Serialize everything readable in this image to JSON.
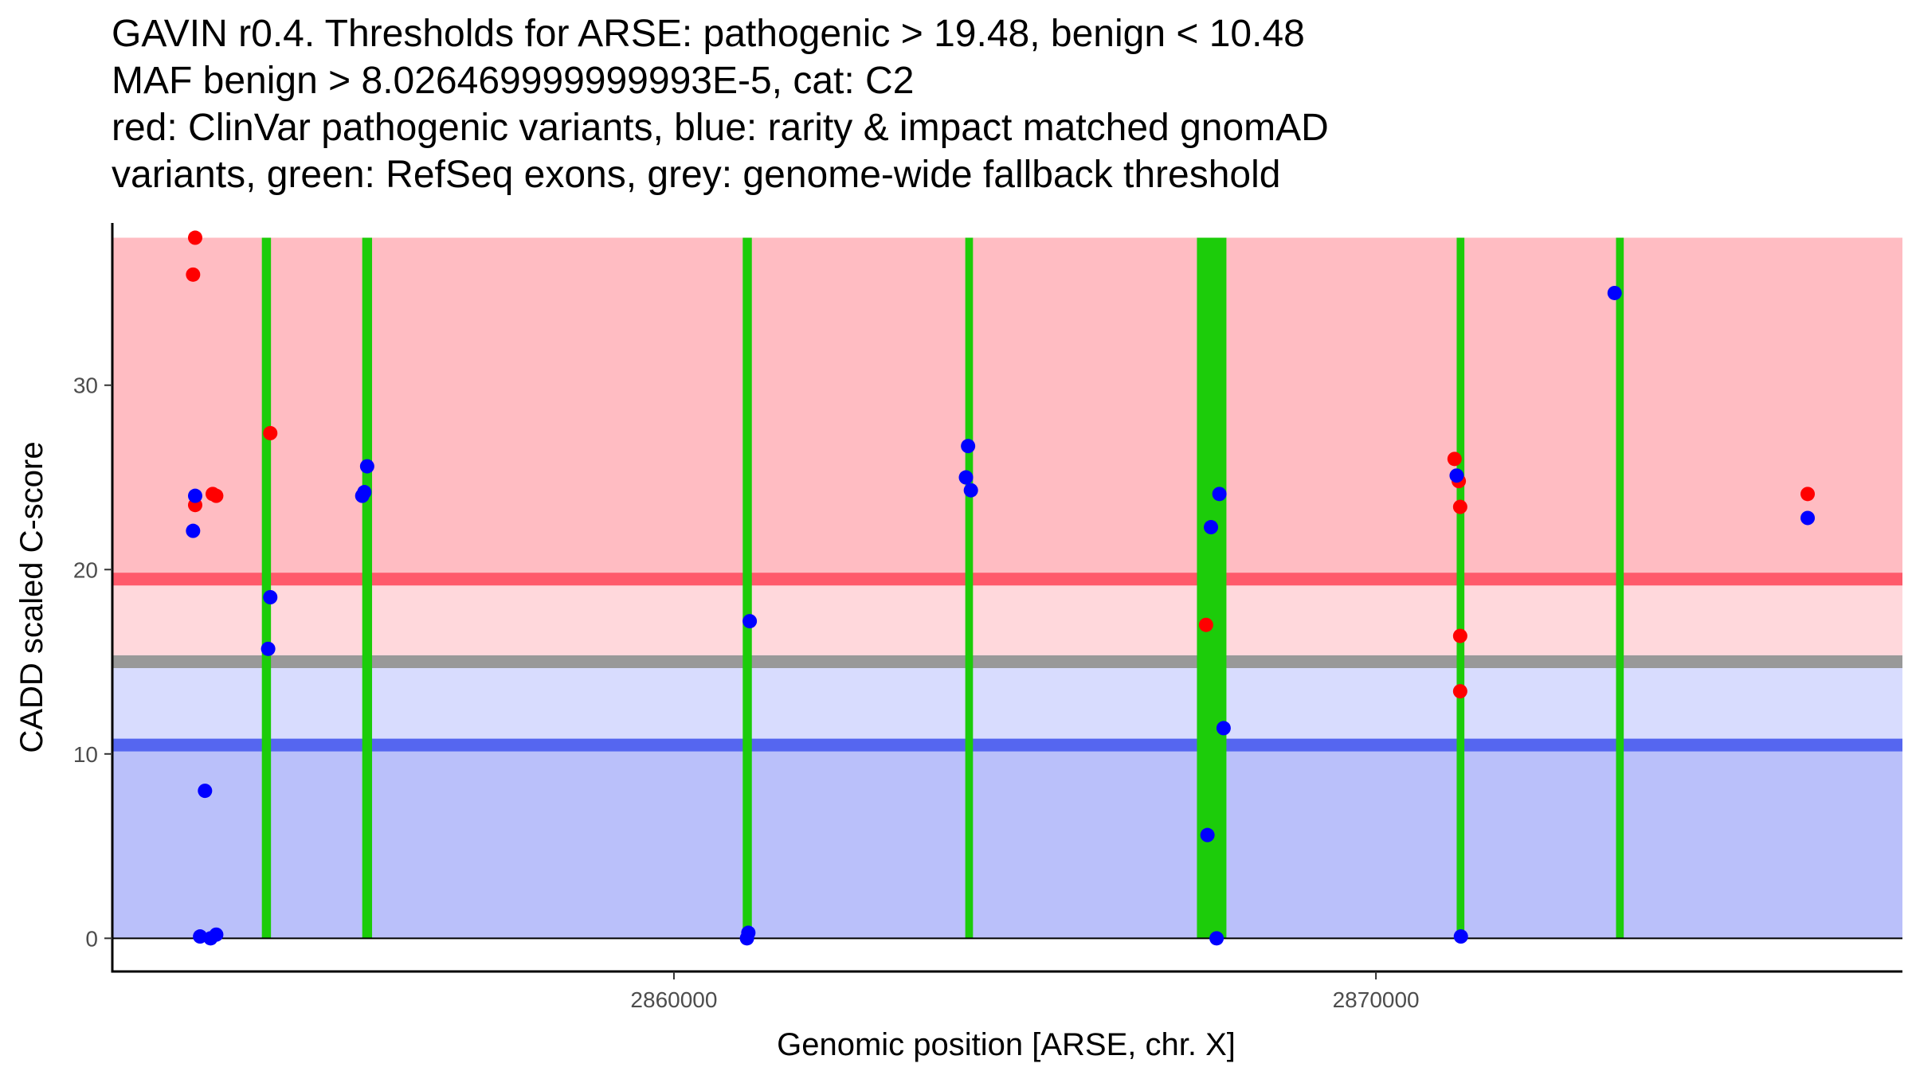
{
  "chart_data": {
    "type": "scatter",
    "title_lines": [
      "GAVIN r0.4. Thresholds for ARSE: pathogenic > 19.48, benign < 10.48",
      "MAF benign > 8.026469999999993E-5, cat: C2",
      "red: ClinVar pathogenic variants, blue: rarity & impact matched gnomAD",
      "variants, green: RefSeq exons, grey: genome-wide fallback threshold"
    ],
    "xlabel": "Genomic position [ARSE, chr. X]",
    "ylabel": "CADD scaled C-score",
    "xlim": [
      2852000,
      2877500
    ],
    "ylim": [
      -1.8,
      38.8
    ],
    "x_ticks": [
      {
        "value": 2860000,
        "label": "2860000"
      },
      {
        "value": 2870000,
        "label": "2870000"
      }
    ],
    "y_ticks": [
      {
        "value": 0,
        "label": "0"
      },
      {
        "value": 10,
        "label": "10"
      },
      {
        "value": 20,
        "label": "20"
      },
      {
        "value": 30,
        "label": "30"
      }
    ],
    "thresholds": {
      "pathogenic": 19.48,
      "benign": 10.48,
      "genome_wide_fallback": 15.0,
      "max_score": 38
    },
    "regions": [
      {
        "name": "pathogenic-zone",
        "y0": 19.48,
        "y1": 38,
        "color": "#ffbcc2"
      },
      {
        "name": "grey-upper-zone",
        "y0": 15.0,
        "y1": 19.48,
        "color": "#ffd8dc"
      },
      {
        "name": "grey-lower-zone",
        "y0": 10.48,
        "y1": 15.0,
        "color": "#d8dcfe"
      },
      {
        "name": "benign-zone",
        "y0": 0,
        "y1": 10.48,
        "color": "#bac0fa"
      }
    ],
    "threshold_lines": [
      {
        "name": "pathogenic-threshold-line",
        "y": 19.48,
        "color": "#ff5a6b"
      },
      {
        "name": "fallback-threshold-line",
        "y": 15.0,
        "color": "#999999"
      },
      {
        "name": "benign-threshold-line",
        "y": 10.48,
        "color": "#5566f0"
      }
    ],
    "exons": [
      {
        "start": 2854130,
        "end": 2854260
      },
      {
        "start": 2855560,
        "end": 2855700
      },
      {
        "start": 2860980,
        "end": 2861110
      },
      {
        "start": 2864150,
        "end": 2864260
      },
      {
        "start": 2867450,
        "end": 2867870
      },
      {
        "start": 2871150,
        "end": 2871260
      },
      {
        "start": 2873420,
        "end": 2873530
      }
    ],
    "series": [
      {
        "name": "ClinVar pathogenic",
        "color": "#ff0000",
        "points": [
          {
            "x": 2853180,
            "y": 38.0
          },
          {
            "x": 2853150,
            "y": 36.0
          },
          {
            "x": 2853180,
            "y": 23.5
          },
          {
            "x": 2853430,
            "y": 24.1
          },
          {
            "x": 2853480,
            "y": 24.0
          },
          {
            "x": 2854250,
            "y": 27.4
          },
          {
            "x": 2867580,
            "y": 17.0
          },
          {
            "x": 2871120,
            "y": 26.0
          },
          {
            "x": 2871180,
            "y": 24.8
          },
          {
            "x": 2871200,
            "y": 23.4
          },
          {
            "x": 2871200,
            "y": 16.4
          },
          {
            "x": 2871200,
            "y": 13.4
          },
          {
            "x": 2876150,
            "y": 24.1
          }
        ]
      },
      {
        "name": "gnomAD matched",
        "color": "#0000ff",
        "points": [
          {
            "x": 2853180,
            "y": 24.0
          },
          {
            "x": 2853150,
            "y": 22.1
          },
          {
            "x": 2853320,
            "y": 8.0
          },
          {
            "x": 2853250,
            "y": 0.1
          },
          {
            "x": 2853400,
            "y": 0.0
          },
          {
            "x": 2853480,
            "y": 0.2
          },
          {
            "x": 2854250,
            "y": 18.5
          },
          {
            "x": 2854220,
            "y": 15.7
          },
          {
            "x": 2855560,
            "y": 24.0
          },
          {
            "x": 2855590,
            "y": 24.2
          },
          {
            "x": 2855630,
            "y": 25.6
          },
          {
            "x": 2861080,
            "y": 17.2
          },
          {
            "x": 2861060,
            "y": 0.3
          },
          {
            "x": 2861040,
            "y": 0.0
          },
          {
            "x": 2864190,
            "y": 26.7
          },
          {
            "x": 2864160,
            "y": 25.0
          },
          {
            "x": 2864230,
            "y": 24.3
          },
          {
            "x": 2867770,
            "y": 24.1
          },
          {
            "x": 2867650,
            "y": 22.3
          },
          {
            "x": 2867830,
            "y": 11.4
          },
          {
            "x": 2867600,
            "y": 5.6
          },
          {
            "x": 2867730,
            "y": 0.0
          },
          {
            "x": 2871150,
            "y": 25.1
          },
          {
            "x": 2871210,
            "y": 0.1
          },
          {
            "x": 2873400,
            "y": 35.0
          },
          {
            "x": 2876150,
            "y": 22.8
          }
        ]
      }
    ]
  }
}
